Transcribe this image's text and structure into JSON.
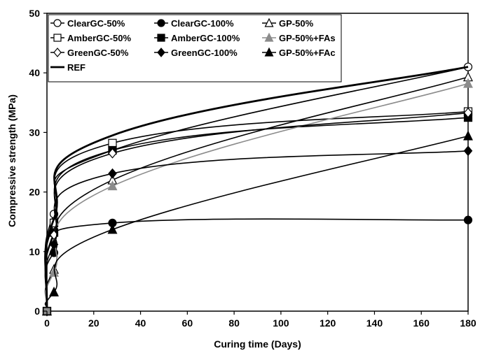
{
  "chart_data": {
    "type": "line",
    "xlabel": "Curing time (Days)",
    "ylabel": "Compressive strength (MPa)",
    "xlim": [
      0,
      180
    ],
    "ylim": [
      0,
      50
    ],
    "xticks": [
      0,
      20,
      40,
      60,
      80,
      100,
      120,
      140,
      160,
      180
    ],
    "yticks": [
      0,
      10,
      20,
      30,
      40,
      50
    ],
    "grid": false,
    "legend_position": "top-left",
    "series": [
      {
        "name": "ClearGC-50%",
        "marker": "circle",
        "fill": "#ffffff",
        "color": "#000000",
        "x": [
          0,
          3,
          28,
          180
        ],
        "y": [
          0,
          16.3,
          27.0,
          41.0
        ]
      },
      {
        "name": "ClearGC-100%",
        "marker": "circle",
        "fill": "#000000",
        "color": "#000000",
        "x": [
          0,
          3,
          28,
          180
        ],
        "y": [
          0,
          9.8,
          14.8,
          15.3
        ]
      },
      {
        "name": "GP-50%",
        "marker": "triangle",
        "fill": "#ffffff",
        "color": "#000000",
        "x": [
          0,
          3,
          28,
          180
        ],
        "y": [
          0,
          7.0,
          22.0,
          39.3
        ]
      },
      {
        "name": "AmberGC-50%",
        "marker": "square",
        "fill": "#ffffff",
        "color": "#000000",
        "x": [
          0,
          3,
          28,
          180
        ],
        "y": [
          0,
          14.8,
          28.2,
          33.5
        ]
      },
      {
        "name": "AmberGC-100%",
        "marker": "square",
        "fill": "#000000",
        "color": "#000000",
        "x": [
          0,
          3,
          28,
          180
        ],
        "y": [
          0,
          13.2,
          27.0,
          32.5
        ]
      },
      {
        "name": "GP-50%+FAs",
        "marker": "triangle",
        "fill": "#8c8c8c",
        "color": "#8c8c8c",
        "x": [
          0,
          3,
          28,
          180
        ],
        "y": [
          0,
          6.5,
          21.0,
          38.2
        ]
      },
      {
        "name": "GreenGC-50%",
        "marker": "diamond",
        "fill": "#ffffff",
        "color": "#000000",
        "x": [
          0,
          3,
          28,
          180
        ],
        "y": [
          0,
          12.8,
          26.5,
          33.3
        ]
      },
      {
        "name": "GreenGC-100%",
        "marker": "diamond",
        "fill": "#000000",
        "color": "#000000",
        "x": [
          0,
          3,
          28,
          180
        ],
        "y": [
          0,
          11.2,
          23.1,
          26.9
        ]
      },
      {
        "name": "GP-50%+FAc",
        "marker": "triangle",
        "fill": "#000000",
        "color": "#000000",
        "x": [
          0,
          3,
          28,
          180
        ],
        "y": [
          0,
          3.2,
          13.7,
          29.4
        ]
      },
      {
        "name": "REF",
        "marker": "none",
        "fill": "#000000",
        "color": "#000000",
        "x": [
          0,
          3,
          28,
          180
        ],
        "y": [
          0,
          15.5,
          29.5,
          41.0
        ]
      }
    ]
  }
}
